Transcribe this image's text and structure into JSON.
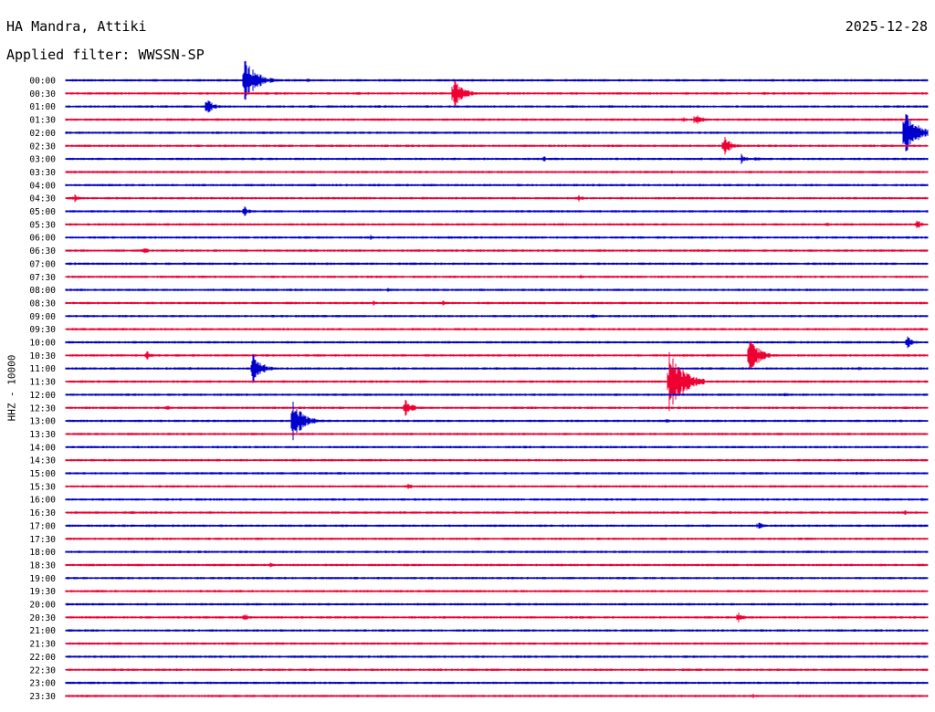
{
  "header": {
    "station": "HA Mandra, Attiki",
    "date": "2025-12-28",
    "filter": "Applied filter: WWSSN-SP"
  },
  "channel_label": "HHZ - 10000",
  "colors": {
    "even_hour": "#0000cc",
    "half_hour": "#ee0033"
  },
  "chart_data": {
    "type": "line",
    "title": "HA Mandra, Attiki",
    "subtitle": "Applied filter: WWSSN-SP",
    "ylabel": "HHZ - 10000",
    "xlabel": "",
    "x_unit": "minutes within 30-min row",
    "xlim": [
      0,
      30
    ],
    "grid": false,
    "rows": [
      "00:00",
      "00:30",
      "01:00",
      "01:30",
      "02:00",
      "02:30",
      "03:00",
      "03:30",
      "04:00",
      "04:30",
      "05:00",
      "05:30",
      "06:00",
      "06:30",
      "07:00",
      "07:30",
      "08:00",
      "08:30",
      "09:00",
      "09:30",
      "10:00",
      "10:30",
      "11:00",
      "11:30",
      "12:00",
      "12:30",
      "13:00",
      "13:30",
      "14:00",
      "14:30",
      "15:00",
      "15:30",
      "16:00",
      "16:30",
      "17:00",
      "17:30",
      "18:00",
      "18:30",
      "19:00",
      "19:30",
      "20:00",
      "20:30",
      "21:00",
      "21:30",
      "22:00",
      "22:30",
      "23:00",
      "23:30"
    ],
    "events": [
      {
        "row": "00:00",
        "minute": 6.2,
        "amplitude": 26
      },
      {
        "row": "00:00",
        "minute": 8.4,
        "amplitude": 3
      },
      {
        "row": "00:00",
        "minute": 11.1,
        "amplitude": 2
      },
      {
        "row": "00:00",
        "minute": 15.0,
        "amplitude": 2
      },
      {
        "row": "00:00",
        "minute": 27.1,
        "amplitude": 2
      },
      {
        "row": "00:30",
        "minute": 10.2,
        "amplitude": 2
      },
      {
        "row": "00:30",
        "minute": 13.5,
        "amplitude": 17
      },
      {
        "row": "00:30",
        "minute": 24.3,
        "amplitude": 2
      },
      {
        "row": "01:00",
        "minute": 4.9,
        "amplitude": 10
      },
      {
        "row": "01:00",
        "minute": 8.5,
        "amplitude": 3
      },
      {
        "row": "01:00",
        "minute": 19.1,
        "amplitude": 2
      },
      {
        "row": "01:30",
        "minute": 21.5,
        "amplitude": 3
      },
      {
        "row": "01:30",
        "minute": 21.9,
        "amplitude": 9
      },
      {
        "row": "02:00",
        "minute": 29.2,
        "amplitude": 26
      },
      {
        "row": "02:00",
        "minute": 16.6,
        "amplitude": 2
      },
      {
        "row": "02:30",
        "minute": 22.9,
        "amplitude": 12
      },
      {
        "row": "03:00",
        "minute": 5.4,
        "amplitude": 2
      },
      {
        "row": "03:00",
        "minute": 16.6,
        "amplitude": 4
      },
      {
        "row": "03:00",
        "minute": 19.9,
        "amplitude": 2
      },
      {
        "row": "03:00",
        "minute": 23.5,
        "amplitude": 6
      },
      {
        "row": "03:00",
        "minute": 24.0,
        "amplitude": 4
      },
      {
        "row": "03:30",
        "minute": 21.1,
        "amplitude": 2
      },
      {
        "row": "04:30",
        "minute": 0.3,
        "amplitude": 5
      },
      {
        "row": "04:30",
        "minute": 13.9,
        "amplitude": 2
      },
      {
        "row": "04:30",
        "minute": 17.8,
        "amplitude": 5
      },
      {
        "row": "05:00",
        "minute": 6.2,
        "amplitude": 6
      },
      {
        "row": "05:30",
        "minute": 26.5,
        "amplitude": 3
      },
      {
        "row": "05:30",
        "minute": 29.6,
        "amplitude": 6
      },
      {
        "row": "06:00",
        "minute": 10.6,
        "amplitude": 3
      },
      {
        "row": "06:00",
        "minute": 22.1,
        "amplitude": 2
      },
      {
        "row": "06:00",
        "minute": 28.0,
        "amplitude": 2
      },
      {
        "row": "06:30",
        "minute": 2.7,
        "amplitude": 5
      },
      {
        "row": "06:30",
        "minute": 22.3,
        "amplitude": 2
      },
      {
        "row": "07:00",
        "minute": 0.3,
        "amplitude": 2
      },
      {
        "row": "07:00",
        "minute": 4.1,
        "amplitude": 3
      },
      {
        "row": "07:00",
        "minute": 12.3,
        "amplitude": 2
      },
      {
        "row": "07:00",
        "minute": 27.6,
        "amplitude": 2
      },
      {
        "row": "07:30",
        "minute": 17.9,
        "amplitude": 3
      },
      {
        "row": "08:00",
        "minute": 11.2,
        "amplitude": 3
      },
      {
        "row": "08:30",
        "minute": 10.7,
        "amplitude": 3
      },
      {
        "row": "08:30",
        "minute": 13.1,
        "amplitude": 3
      },
      {
        "row": "08:30",
        "minute": 14.5,
        "amplitude": 2
      },
      {
        "row": "08:30",
        "minute": 15.5,
        "amplitude": 2
      },
      {
        "row": "09:00",
        "minute": 18.3,
        "amplitude": 3
      },
      {
        "row": "10:00",
        "minute": 29.3,
        "amplitude": 8
      },
      {
        "row": "10:30",
        "minute": 2.8,
        "amplitude": 6
      },
      {
        "row": "10:30",
        "minute": 23.8,
        "amplitude": 20
      },
      {
        "row": "10:30",
        "minute": 29.7,
        "amplitude": 2
      },
      {
        "row": "11:00",
        "minute": 0.6,
        "amplitude": 2
      },
      {
        "row": "11:00",
        "minute": 4.3,
        "amplitude": 2
      },
      {
        "row": "11:00",
        "minute": 6.5,
        "amplitude": 17
      },
      {
        "row": "11:00",
        "minute": 27.6,
        "amplitude": 3
      },
      {
        "row": "11:30",
        "minute": 12.3,
        "amplitude": 2
      },
      {
        "row": "11:30",
        "minute": 21.0,
        "amplitude": 34
      },
      {
        "row": "12:00",
        "minute": 25.0,
        "amplitude": 4
      },
      {
        "row": "12:30",
        "minute": 3.5,
        "amplitude": 4
      },
      {
        "row": "12:30",
        "minute": 8.3,
        "amplitude": 2
      },
      {
        "row": "12:30",
        "minute": 11.8,
        "amplitude": 11
      },
      {
        "row": "13:00",
        "minute": 7.9,
        "amplitude": 22
      },
      {
        "row": "13:00",
        "minute": 16.5,
        "amplitude": 2
      },
      {
        "row": "13:00",
        "minute": 20.9,
        "amplitude": 3
      },
      {
        "row": "15:00",
        "minute": 27.5,
        "amplitude": 2
      },
      {
        "row": "15:30",
        "minute": 11.9,
        "amplitude": 4
      },
      {
        "row": "16:00",
        "minute": 29.8,
        "amplitude": 2
      },
      {
        "row": "16:30",
        "minute": 2.3,
        "amplitude": 2
      },
      {
        "row": "16:30",
        "minute": 29.2,
        "amplitude": 3
      },
      {
        "row": "17:00",
        "minute": 24.1,
        "amplitude": 5
      },
      {
        "row": "18:30",
        "minute": 7.1,
        "amplitude": 3
      },
      {
        "row": "20:00",
        "minute": 26.6,
        "amplitude": 4
      },
      {
        "row": "20:30",
        "minute": 6.2,
        "amplitude": 5
      },
      {
        "row": "20:30",
        "minute": 23.4,
        "amplitude": 6
      },
      {
        "row": "23:30",
        "minute": 11.9,
        "amplitude": 2
      },
      {
        "row": "23:30",
        "minute": 23.9,
        "amplitude": 3
      }
    ]
  }
}
